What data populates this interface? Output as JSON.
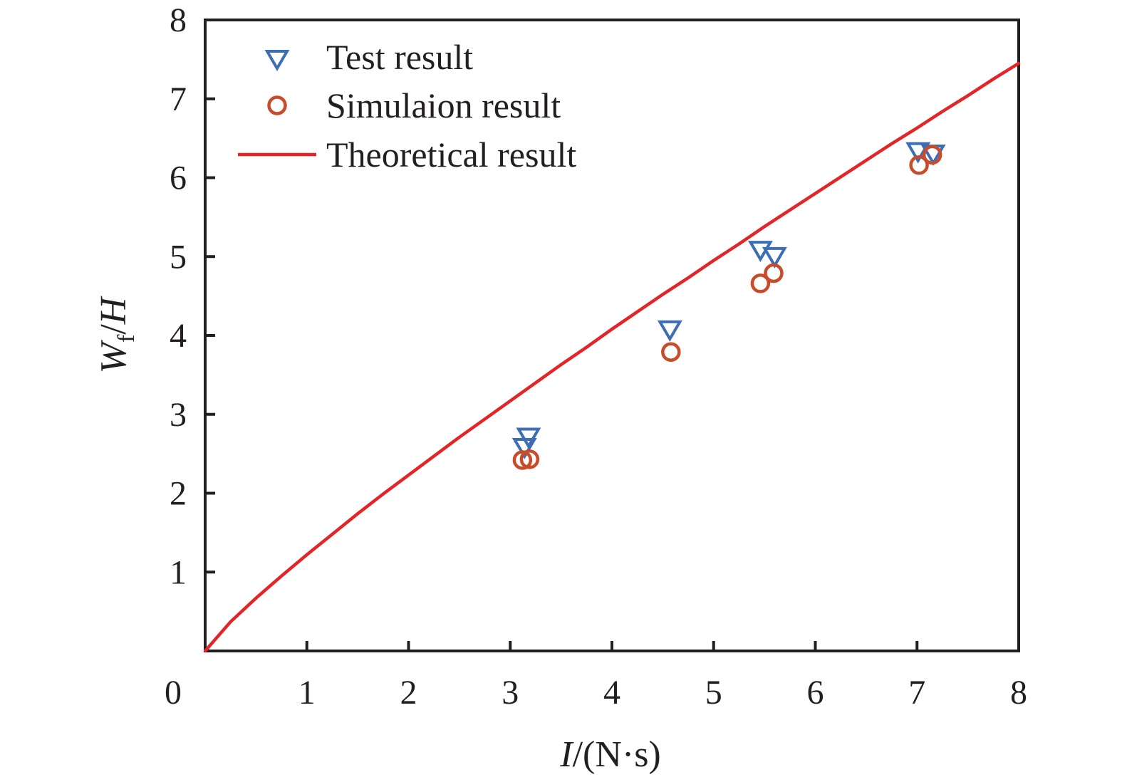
{
  "figure": {
    "background": "#ffffff",
    "title": ""
  },
  "chart_data": {
    "type": "scatter",
    "title": "",
    "xlabel": "I/(N·s)",
    "ylabel": "Wf/H",
    "xlabel_parts": {
      "italic": "I",
      "roman": "/(N·s)"
    },
    "ylabel_parts": {
      "italic": "W",
      "sub": "f",
      "slash": "/",
      "italic2": "H"
    },
    "xlim": [
      0,
      8
    ],
    "ylim": [
      0,
      8
    ],
    "x_tick_labels": [
      0,
      1,
      2,
      3,
      4,
      5,
      6,
      7,
      8
    ],
    "y_tick_labels": [
      1,
      2,
      3,
      4,
      5,
      6,
      7,
      8
    ],
    "grid": false,
    "legend_position": "inside-top-left",
    "colors": {
      "axis": "#231f20",
      "test": "#3d6eb5",
      "simulation": "#c94b2a",
      "theory": "#e32528"
    },
    "series": [
      {
        "name": "Test result",
        "type": "scatter",
        "marker": "triangle-down-open",
        "color": "#3d6eb5",
        "points": [
          [
            3.18,
            2.74
          ],
          [
            3.14,
            2.61
          ],
          [
            4.57,
            4.1
          ],
          [
            5.46,
            5.11
          ],
          [
            5.6,
            5.03
          ],
          [
            7.01,
            6.36
          ],
          [
            7.16,
            6.33
          ]
        ]
      },
      {
        "name": "Simulaion result",
        "type": "scatter",
        "marker": "circle-open",
        "color": "#c94b2a",
        "points": [
          [
            3.12,
            2.42
          ],
          [
            3.19,
            2.43
          ],
          [
            4.58,
            3.79
          ],
          [
            5.46,
            4.66
          ],
          [
            5.59,
            4.79
          ],
          [
            7.02,
            6.16
          ],
          [
            7.15,
            6.29
          ]
        ]
      },
      {
        "name": "Theoretical result",
        "type": "line",
        "color": "#e32528",
        "points": [
          [
            0,
            0
          ],
          [
            0.25,
            0.37
          ],
          [
            0.5,
            0.67
          ],
          [
            0.75,
            0.95
          ],
          [
            1,
            1.22
          ],
          [
            1.25,
            1.48
          ],
          [
            1.5,
            1.74
          ],
          [
            1.75,
            1.99
          ],
          [
            2,
            2.23
          ],
          [
            2.25,
            2.47
          ],
          [
            2.5,
            2.71
          ],
          [
            2.75,
            2.94
          ],
          [
            3,
            3.17
          ],
          [
            3.25,
            3.4
          ],
          [
            3.5,
            3.63
          ],
          [
            3.75,
            3.85
          ],
          [
            4,
            4.08
          ],
          [
            4.25,
            4.3
          ],
          [
            4.5,
            4.52
          ],
          [
            4.75,
            4.73
          ],
          [
            5,
            4.95
          ],
          [
            5.25,
            5.16
          ],
          [
            5.5,
            5.38
          ],
          [
            5.75,
            5.59
          ],
          [
            6,
            5.8
          ],
          [
            6.25,
            6.01
          ],
          [
            6.5,
            6.22
          ],
          [
            6.75,
            6.43
          ],
          [
            7,
            6.63
          ],
          [
            7.25,
            6.84
          ],
          [
            7.5,
            7.04
          ],
          [
            7.75,
            7.25
          ],
          [
            8,
            7.45
          ]
        ]
      }
    ]
  }
}
